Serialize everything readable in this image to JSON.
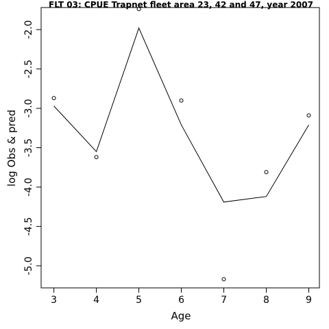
{
  "chart_data": {
    "type": "line",
    "title": "FLT 03: CPUE Trapnet fleet area 23, 42 and 47, year 2007",
    "xlabel": "Age",
    "ylabel": "log Obs & pred",
    "xlim": [
      2.7,
      9.25
    ],
    "ylim": [
      -5.28,
      -1.72
    ],
    "x_ticks": [
      3,
      4,
      5,
      6,
      7,
      8,
      9
    ],
    "x_tick_labels": [
      "3",
      "4",
      "5",
      "6",
      "7",
      "8",
      "9"
    ],
    "y_ticks": [
      -2.0,
      -2.5,
      -3.0,
      -3.5,
      -4.0,
      -4.5,
      -5.0
    ],
    "y_tick_labels": [
      "-2.0",
      "-2.5",
      "-3.0",
      "-3.5",
      "-4.0",
      "-4.5",
      "-5.0"
    ],
    "grid": false,
    "legend": "none",
    "series": [
      {
        "role": "observed",
        "style": "points",
        "x": [
          3,
          4,
          5,
          6,
          7,
          8,
          9
        ],
        "y": [
          -2.87,
          -3.62,
          -1.74,
          -2.9,
          -5.17,
          -3.81,
          -3.09
        ]
      },
      {
        "role": "predicted",
        "style": "line",
        "x": [
          3,
          4,
          5,
          6,
          7,
          8,
          9
        ],
        "y": [
          -2.97,
          -3.55,
          -1.98,
          -3.21,
          -4.19,
          -4.12,
          -3.21
        ]
      }
    ],
    "colors": {
      "line": "#000000",
      "points": "#000000"
    }
  }
}
